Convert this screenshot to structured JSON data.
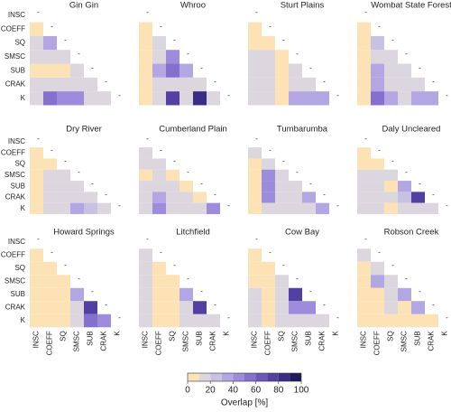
{
  "chart_data": {
    "type": "heatmap",
    "row_labels": [
      "INSC",
      "COEFF",
      "SQ",
      "SMSC",
      "SUB",
      "CRAK",
      "K"
    ],
    "col_labels": [
      "INSC",
      "COEFF",
      "SQ",
      "SMSC",
      "SUB",
      "CRAK",
      "K"
    ],
    "diagonal_label": "-",
    "panels": [
      {
        "title": "Gin Gin",
        "values": [
          [
            5
          ],
          [
            15,
            35
          ],
          [
            15,
            15,
            15
          ],
          [
            5,
            5,
            5,
            15
          ],
          [
            15,
            15,
            15,
            15,
            15
          ],
          [
            15,
            55,
            45,
            45,
            15,
            15
          ]
        ]
      },
      {
        "title": "Whroo",
        "values": [
          [
            5
          ],
          [
            5,
            15
          ],
          [
            5,
            15,
            45
          ],
          [
            5,
            35,
            55,
            35
          ],
          [
            5,
            15,
            15,
            15,
            15
          ],
          [
            5,
            15,
            75,
            15,
            85,
            15
          ]
        ]
      },
      {
        "title": "Sturt Plains",
        "values": [
          [
            5
          ],
          [
            5,
            5
          ],
          [
            15,
            15,
            5
          ],
          [
            15,
            15,
            5,
            15
          ],
          [
            15,
            15,
            5,
            15,
            15
          ],
          [
            15,
            15,
            5,
            35,
            35,
            35
          ]
        ]
      },
      {
        "title": "Wombat State Forest",
        "values": [
          [
            5
          ],
          [
            5,
            25
          ],
          [
            5,
            15,
            15
          ],
          [
            5,
            35,
            15,
            15
          ],
          [
            5,
            35,
            15,
            15,
            15
          ],
          [
            5,
            55,
            35,
            15,
            35,
            35
          ]
        ]
      },
      {
        "title": "Dry River",
        "values": [
          [
            5
          ],
          [
            5,
            5
          ],
          [
            5,
            15,
            15
          ],
          [
            5,
            15,
            15,
            15
          ],
          [
            5,
            15,
            15,
            15,
            15
          ],
          [
            5,
            15,
            15,
            35,
            25,
            15
          ]
        ]
      },
      {
        "title": "Cumberland Plain",
        "values": [
          [
            15
          ],
          [
            15,
            15
          ],
          [
            5,
            15,
            5
          ],
          [
            15,
            15,
            15,
            5
          ],
          [
            15,
            35,
            15,
            15,
            5
          ],
          [
            15,
            45,
            15,
            15,
            15,
            45
          ]
        ]
      },
      {
        "title": "Tumbarumba",
        "values": [
          [
            15
          ],
          [
            5,
            15
          ],
          [
            5,
            45,
            15
          ],
          [
            5,
            45,
            15,
            15
          ],
          [
            5,
            45,
            15,
            15,
            35
          ],
          [
            5,
            15,
            15,
            15,
            15,
            35
          ]
        ]
      },
      {
        "title": "Daly Uncleared",
        "values": [
          [
            5
          ],
          [
            5,
            5
          ],
          [
            15,
            15,
            15
          ],
          [
            15,
            15,
            5,
            35
          ],
          [
            15,
            15,
            15,
            25,
            75
          ],
          [
            15,
            15,
            5,
            15,
            15,
            15
          ]
        ]
      },
      {
        "title": "Howard Springs",
        "values": [
          [
            5
          ],
          [
            5,
            5
          ],
          [
            5,
            5,
            5
          ],
          [
            5,
            5,
            5,
            35
          ],
          [
            5,
            5,
            5,
            15,
            75
          ],
          [
            5,
            5,
            5,
            15,
            55,
            45
          ]
        ]
      },
      {
        "title": "Litchfield",
        "values": [
          [
            15
          ],
          [
            15,
            5
          ],
          [
            15,
            5,
            5
          ],
          [
            15,
            5,
            5,
            35
          ],
          [
            15,
            5,
            5,
            15,
            75
          ],
          [
            15,
            5,
            5,
            15,
            15,
            15
          ]
        ]
      },
      {
        "title": "Cow Bay",
        "values": [
          [
            5
          ],
          [
            5,
            5
          ],
          [
            5,
            5,
            15
          ],
          [
            15,
            5,
            15,
            75
          ],
          [
            15,
            5,
            15,
            45,
            45
          ],
          [
            15,
            5,
            15,
            15,
            15,
            15
          ]
        ]
      },
      {
        "title": "Robson Creek",
        "values": [
          [
            15
          ],
          [
            5,
            15
          ],
          [
            5,
            35,
            15
          ],
          [
            5,
            5,
            15,
            35
          ],
          [
            5,
            5,
            15,
            5,
            35
          ],
          [
            5,
            5,
            5,
            5,
            5,
            5
          ]
        ]
      }
    ],
    "colorbar": {
      "label": "Overlap [%]",
      "bounds": [
        0,
        10,
        20,
        30,
        40,
        50,
        60,
        70,
        80,
        90,
        100
      ],
      "colors": [
        "#fde2b6",
        "#dcd6de",
        "#c9c1e2",
        "#b3a7e3",
        "#9c8cdb",
        "#8371cd",
        "#6b57bb",
        "#5241a3",
        "#392d86",
        "#1e1a5c"
      ],
      "ticks": [
        0,
        20,
        40,
        60,
        80,
        100
      ]
    }
  }
}
